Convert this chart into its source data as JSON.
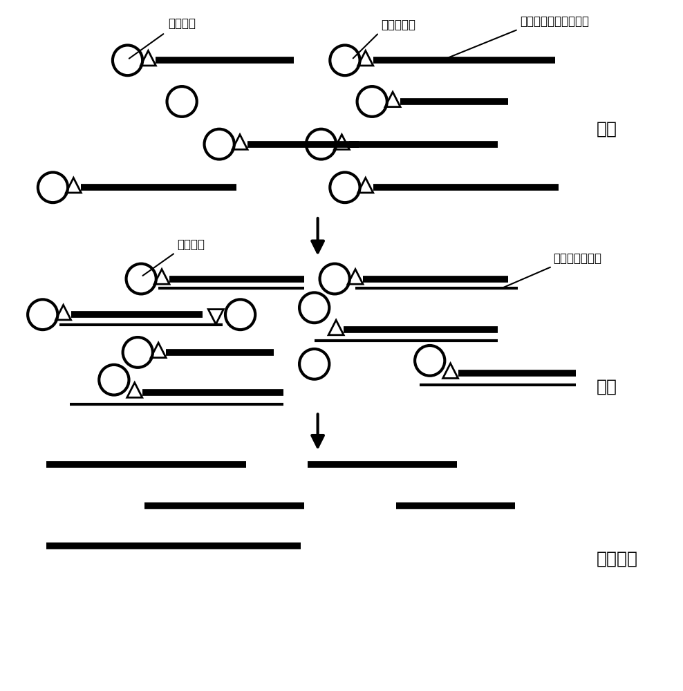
{
  "bg_color": "#ffffff",
  "line_color": "#000000",
  "thick_lw": 7,
  "thin_lw": 3,
  "circle_r": 0.022,
  "tri_size": 0.014,
  "font_size_label": 12,
  "font_size_stage": 18,
  "labels": {
    "solid_support_1": "固相载体",
    "biotin_label": "生物素标记",
    "biotin_probe": "生物素标记的捕获探针",
    "solid_support_2": "固相载体",
    "nucleic_acid": "待捕获核酸片段",
    "capture": "捕获",
    "hybridization": "杂交",
    "denaturation": "变性分离"
  }
}
